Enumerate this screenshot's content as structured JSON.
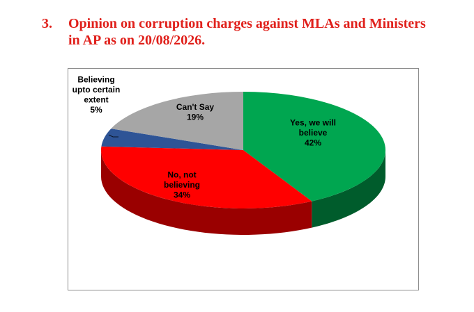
{
  "heading": {
    "number": "3.",
    "line1": "Opinion on corruption charges against MLAs and Ministers",
    "line2": "in AP as on 20/08/2026."
  },
  "chart_data": {
    "type": "pie",
    "title": "",
    "three_d": true,
    "slices": [
      {
        "label_lines": [
          "Yes, we will",
          "believe"
        ],
        "value": 42,
        "value_label": "42%",
        "color": "#00a650",
        "side_color": "#005c2c"
      },
      {
        "label_lines": [
          "No, not",
          "believing"
        ],
        "value": 34,
        "value_label": "34%",
        "color": "#ff0000",
        "side_color": "#9a0000"
      },
      {
        "label_lines": [
          "Believing",
          "upto certain",
          "extent"
        ],
        "value": 5,
        "value_label": "5%",
        "color": "#2e5496",
        "side_color": "#1a3160"
      },
      {
        "label_lines": [
          "Can't Say"
        ],
        "value": 19,
        "value_label": "19%",
        "color": "#a6a6a6",
        "side_color": "#6e6e6e"
      }
    ]
  }
}
